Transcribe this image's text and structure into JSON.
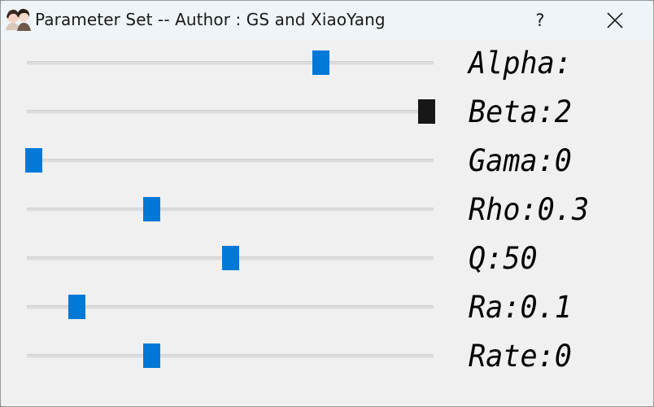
{
  "window": {
    "title": "Parameter Set -- Author : GS and XiaoYang",
    "help_label": "?",
    "close_icon": "close-icon"
  },
  "parameters": [
    {
      "label": "Alpha:",
      "slider_value": 0.73,
      "focused": false
    },
    {
      "label": "Beta:2",
      "slider_value": 1.0,
      "focused": true
    },
    {
      "label": "Gama:0",
      "slider_value": 0.0,
      "focused": false
    },
    {
      "label": "Rho:0.3",
      "slider_value": 0.3,
      "focused": false
    },
    {
      "label": "Q:50",
      "slider_value": 0.5,
      "focused": false
    },
    {
      "label": "Ra:0.1",
      "slider_value": 0.11,
      "focused": false
    },
    {
      "label": "Rate:0",
      "slider_value": 0.3,
      "focused": false
    }
  ],
  "colors": {
    "thumb": "#0078d7",
    "thumb_focused": "#171717",
    "background": "#f0f0f0",
    "titlebar": "#eef4f7"
  }
}
